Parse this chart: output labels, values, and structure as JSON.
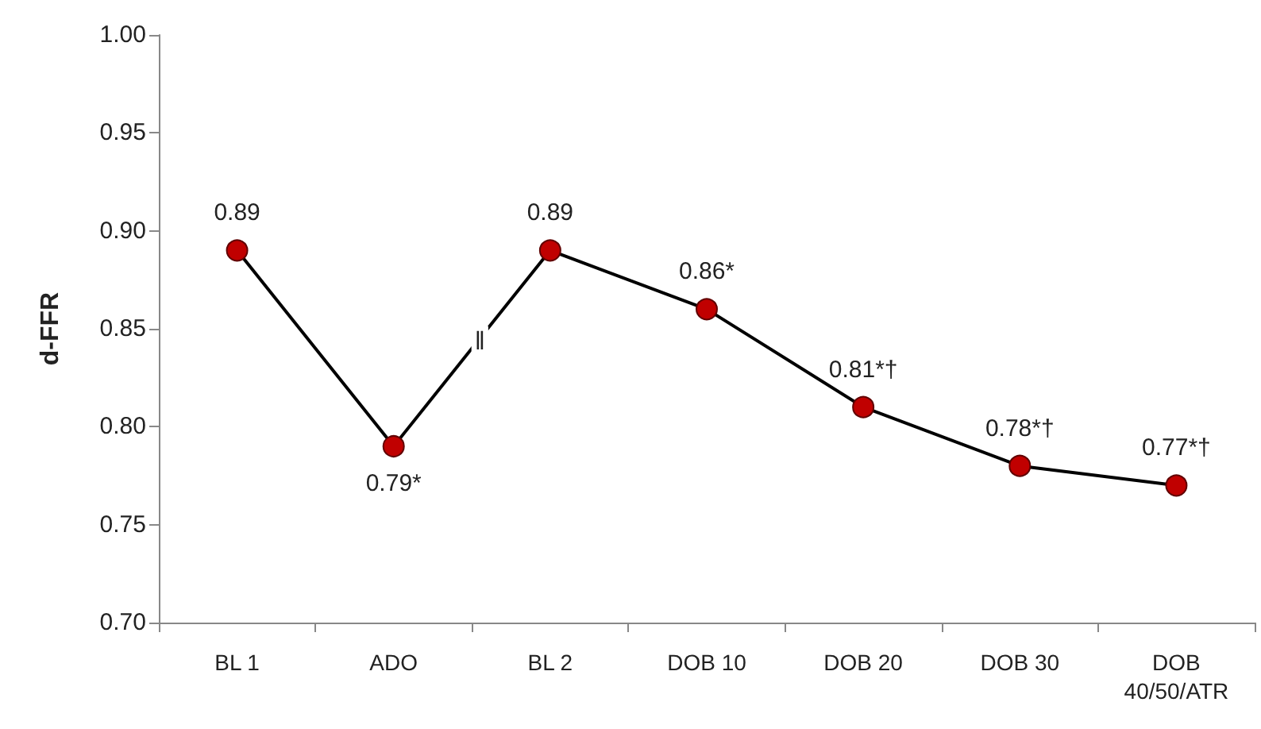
{
  "chart_data": {
    "type": "line",
    "ylabel": "d-FFR",
    "categories": [
      "BL 1",
      "ADO",
      "BL 2",
      "DOB 10",
      "DOB 20",
      "DOB 30",
      "DOB\n40/50/ATR"
    ],
    "series": [
      {
        "color": "#c00000",
        "values": [
          0.89,
          0.79,
          0.89,
          0.86,
          0.81,
          0.78,
          0.77
        ],
        "value_labels": [
          "0.89",
          "0.79*",
          "0.89",
          "0.86*",
          "0.81*†",
          "0.78*†",
          "0.77*†"
        ]
      }
    ],
    "ylim": [
      0.7,
      1.0
    ],
    "yticks": [
      {
        "value": 0.7,
        "label": "0.70"
      },
      0.75,
      {
        "value": 0.8,
        "label": "0.80"
      },
      0.85,
      {
        "value": 0.9,
        "label": "0.90"
      },
      0.95,
      {
        "value": 1.0,
        "label": "1.00"
      }
    ],
    "grid": false,
    "marker": "circle",
    "line_style": "solid",
    "annotations": [
      "‖"
    ]
  }
}
